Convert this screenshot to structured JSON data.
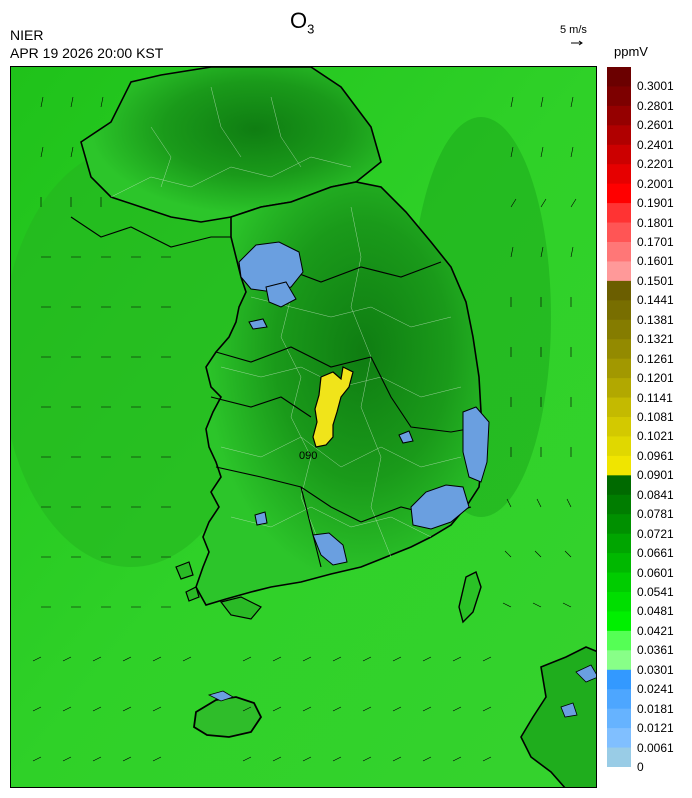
{
  "header": {
    "title": "O",
    "title_subscript": "3",
    "agency": "NIER",
    "datetime": "APR 19 2026 20:00 KST",
    "wind_scale_label": "5 m/s",
    "unit": "ppmV"
  },
  "map": {
    "contour_label": "090",
    "colors": {
      "sea": "#27c51e",
      "land_dark": "#138f14",
      "land_mid": "#2ec92a",
      "high_o3": "#f0e41a",
      "low_o3": "#6a9fe0",
      "outline": "#000000"
    }
  },
  "legend": {
    "colors": [
      "#6b0000",
      "#7d0000",
      "#950000",
      "#b00000",
      "#cc0000",
      "#e60000",
      "#ff0000",
      "#ff3333",
      "#ff5555",
      "#ff7777",
      "#ff9999",
      "#6b5e00",
      "#786e00",
      "#857c00",
      "#938a00",
      "#a29800",
      "#b2a800",
      "#c4ba00",
      "#d3c900",
      "#e0d800",
      "#f0e500",
      "#006a00",
      "#007d00",
      "#009000",
      "#00a500",
      "#00b800",
      "#00cc00",
      "#00de00",
      "#00f000",
      "#55ff55",
      "#88ff88",
      "#3399ff",
      "#4da6ff",
      "#66b3ff",
      "#80bfff",
      "#99cce6"
    ],
    "labels": [
      "0.3001",
      "0.2801",
      "0.2601",
      "0.2401",
      "0.2201",
      "0.2001",
      "0.1901",
      "0.1801",
      "0.1701",
      "0.1601",
      "0.1501",
      "0.1441",
      "0.1381",
      "0.1321",
      "0.1261",
      "0.1201",
      "0.1141",
      "0.1081",
      "0.1021",
      "0.0961",
      "0.0901",
      "0.0841",
      "0.0781",
      "0.0721",
      "0.0661",
      "0.0601",
      "0.0541",
      "0.0481",
      "0.0421",
      "0.0361",
      "0.0301",
      "0.0241",
      "0.0181",
      "0.0121",
      "0.0061",
      "0"
    ]
  }
}
